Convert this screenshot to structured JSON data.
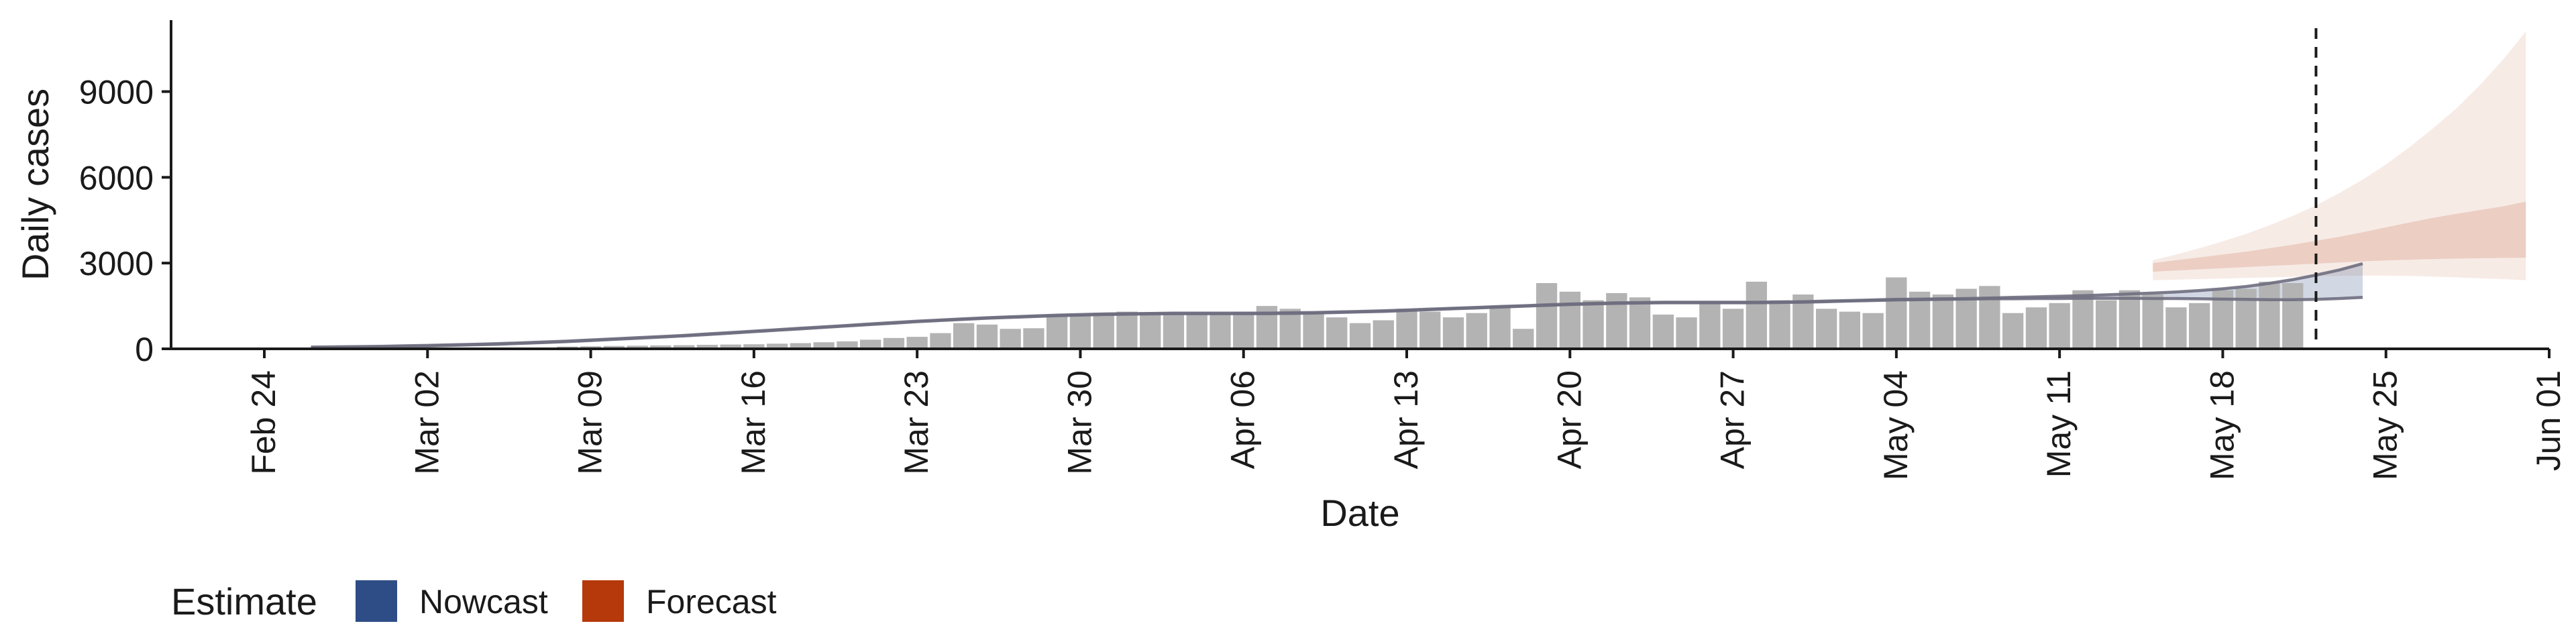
{
  "chart_data": {
    "type": "bar",
    "xlabel": "Date",
    "ylabel": "Daily cases",
    "ylim": [
      0,
      11500
    ],
    "yticks": [
      0,
      3000,
      6000,
      9000
    ],
    "xticks": [
      "2020-02-24",
      "2020-03-02",
      "2020-03-09",
      "2020-03-16",
      "2020-03-23",
      "2020-03-30",
      "2020-04-06",
      "2020-04-13",
      "2020-04-20",
      "2020-04-27",
      "2020-05-04",
      "2020-05-11",
      "2020-05-18",
      "2020-05-25",
      "2020-06-01"
    ],
    "xtick_labels": [
      "Feb 24",
      "Mar 02",
      "Mar 09",
      "Mar 16",
      "Mar 23",
      "Mar 30",
      "Apr 06",
      "Apr 13",
      "Apr 20",
      "Apr 27",
      "May 04",
      "May 11",
      "May 18",
      "May 25",
      "Jun 01"
    ],
    "xlim": [
      "2020-02-20",
      "2020-06-01"
    ],
    "grid": false,
    "vline_date": "2020-05-22",
    "colors": {
      "bars": "#b3b3b3",
      "nowcast": "#2e4d86",
      "forecast": "#b5390b",
      "line": "#6e6e80"
    },
    "observed": {
      "start_date": "2020-03-08",
      "values": [
        80,
        90,
        100,
        110,
        120,
        130,
        140,
        150,
        160,
        180,
        200,
        230,
        260,
        320,
        380,
        420,
        550,
        900,
        850,
        700,
        720,
        1150,
        1200,
        1250,
        1300,
        1280,
        1250,
        1200,
        1250,
        1300,
        1500,
        1400,
        1250,
        1100,
        900,
        1000,
        1400,
        1300,
        1100,
        1250,
        1500,
        700,
        2300,
        2000,
        1700,
        1950,
        1800,
        1200,
        1100,
        1600,
        1400,
        2350,
        1700,
        1900,
        1400,
        1300,
        1250,
        2500,
        2000,
        1900,
        2100,
        2200,
        1250,
        1450,
        1600,
        2050,
        1700,
        2050,
        1900,
        1450,
        1600,
        2050,
        2100,
        2350,
        2300
      ]
    },
    "series": [
      {
        "name": "Nowcast",
        "start_date": "2020-02-26",
        "median": [
          50,
          60,
          70,
          80,
          95,
          110,
          130,
          150,
          170,
          200,
          230,
          260,
          300,
          340,
          380,
          420,
          460,
          510,
          560,
          610,
          660,
          710,
          760,
          810,
          860,
          910,
          960,
          1000,
          1040,
          1080,
          1110,
          1140,
          1170,
          1190,
          1210,
          1220,
          1230,
          1240,
          1240,
          1240,
          1240,
          1240,
          1250,
          1260,
          1280,
          1300,
          1320,
          1350,
          1380,
          1410,
          1440,
          1470,
          1500,
          1530,
          1560,
          1580,
          1600,
          1610,
          1620,
          1620,
          1620,
          1620,
          1620,
          1630,
          1640,
          1660,
          1680,
          1700,
          1720,
          1730,
          1740,
          1750,
          1760,
          1770,
          1780,
          1790,
          1800,
          1810,
          1820,
          1820,
          1830,
          1840,
          1860,
          1900,
          1960,
          2050,
          2150,
          2280,
          2450
        ],
        "lower": [
          40,
          50,
          60,
          70,
          85,
          100,
          120,
          140,
          160,
          190,
          220,
          250,
          290,
          330,
          370,
          410,
          450,
          500,
          550,
          600,
          650,
          700,
          750,
          800,
          850,
          900,
          950,
          990,
          1030,
          1070,
          1100,
          1130,
          1160,
          1180,
          1200,
          1210,
          1220,
          1230,
          1230,
          1230,
          1230,
          1230,
          1240,
          1250,
          1270,
          1290,
          1310,
          1340,
          1370,
          1400,
          1430,
          1460,
          1490,
          1520,
          1550,
          1570,
          1590,
          1600,
          1610,
          1610,
          1610,
          1610,
          1610,
          1620,
          1630,
          1650,
          1670,
          1690,
          1710,
          1720,
          1730,
          1740,
          1750,
          1750,
          1760,
          1760,
          1770,
          1770,
          1770,
          1760,
          1760,
          1750,
          1740,
          1730,
          1720,
          1720,
          1730,
          1760,
          1800
        ],
        "upper": [
          60,
          70,
          80,
          90,
          105,
          120,
          140,
          160,
          180,
          210,
          240,
          270,
          310,
          350,
          390,
          430,
          470,
          520,
          570,
          620,
          670,
          720,
          770,
          820,
          870,
          920,
          970,
          1010,
          1050,
          1090,
          1120,
          1150,
          1180,
          1200,
          1220,
          1230,
          1240,
          1250,
          1250,
          1250,
          1250,
          1250,
          1260,
          1270,
          1290,
          1310,
          1330,
          1360,
          1390,
          1420,
          1450,
          1480,
          1510,
          1540,
          1570,
          1590,
          1610,
          1620,
          1630,
          1630,
          1630,
          1630,
          1630,
          1640,
          1650,
          1670,
          1690,
          1710,
          1730,
          1740,
          1750,
          1760,
          1780,
          1800,
          1820,
          1840,
          1860,
          1890,
          1920,
          1950,
          1990,
          2040,
          2100,
          2180,
          2290,
          2420,
          2580,
          2760,
          2980
        ]
      },
      {
        "name": "Forecast",
        "start_date": "2020-05-15",
        "lower50": [
          2700,
          2740,
          2780,
          2820,
          2860,
          2900,
          2940,
          2980,
          3020,
          3060,
          3090,
          3120,
          3140,
          3160,
          3170,
          3180,
          3190
        ],
        "upper50": [
          3000,
          3100,
          3200,
          3300,
          3400,
          3520,
          3640,
          3780,
          3920,
          4080,
          4250,
          4420,
          4580,
          4720,
          4850,
          4980,
          5150
        ],
        "lower90": [
          2400,
          2420,
          2440,
          2460,
          2480,
          2500,
          2520,
          2540,
          2550,
          2560,
          2560,
          2550,
          2530,
          2500,
          2470,
          2440,
          2400
        ],
        "upper90": [
          3100,
          3300,
          3520,
          3760,
          4020,
          4320,
          4650,
          5020,
          5450,
          5920,
          6450,
          7050,
          7700,
          8400,
          9200,
          10100,
          11100
        ]
      }
    ],
    "legend": {
      "title": "Estimate",
      "position": "bottom-left",
      "entries": [
        {
          "name": "Nowcast",
          "color": "#2e4d86"
        },
        {
          "name": "Forecast",
          "color": "#b5390b"
        }
      ]
    }
  }
}
